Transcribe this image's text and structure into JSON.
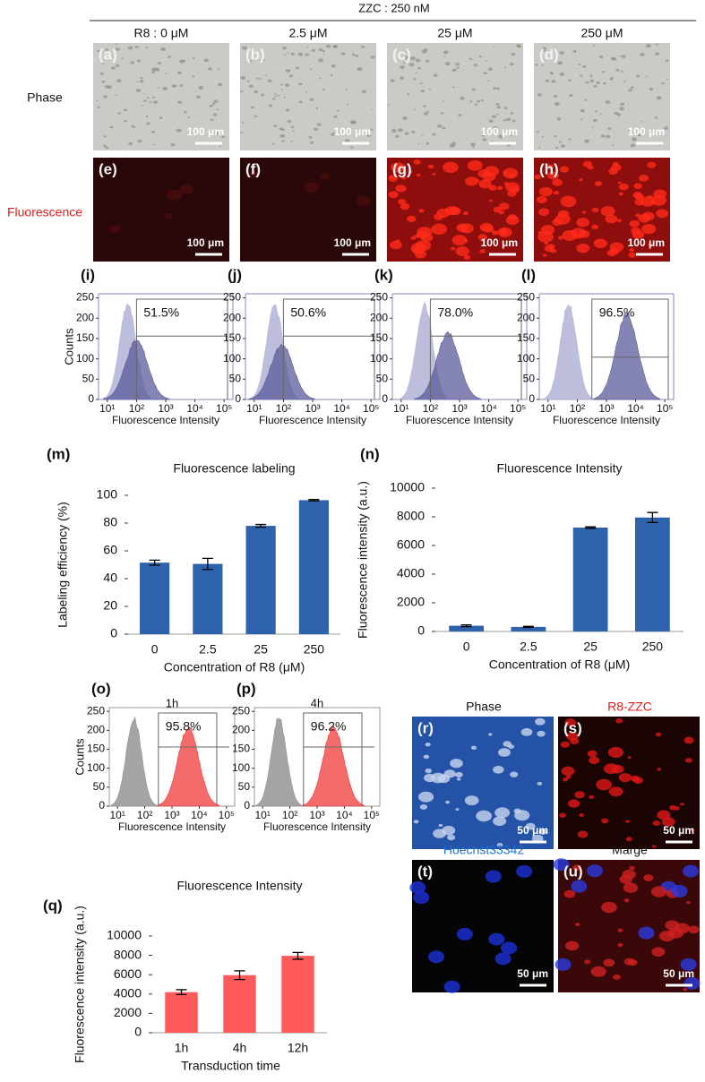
{
  "header": {
    "title": "ZZC : 250 nM",
    "columns": [
      "R8 : 0 μM",
      "2.5 μM",
      "25 μM",
      "250 μM"
    ]
  },
  "rows": {
    "phase": "Phase",
    "fluorescence": "Fluorescence"
  },
  "images": {
    "labels": [
      "(a)",
      "(b)",
      "(c)",
      "(d)",
      "(e)",
      "(f)",
      "(g)",
      "(h)"
    ],
    "scale_bar": "100 μm"
  },
  "flow_axes": {
    "ylabel": "Counts",
    "xlabel": "Fluorescence Intensity",
    "xlim": [
      5,
      200000
    ],
    "ylim": [
      0,
      260
    ],
    "yticks": [
      0,
      50,
      100,
      150,
      200,
      250
    ],
    "xticks": [
      {
        "value": 10,
        "label": "10¹"
      },
      {
        "value": 100,
        "label": "10²"
      },
      {
        "value": 1000,
        "label": "10³"
      },
      {
        "value": 10000,
        "label": "10⁴"
      },
      {
        "value": 100000,
        "label": "10⁵"
      }
    ]
  },
  "flow_plots": [
    {
      "label": "(i)",
      "gate": "51.5%"
    },
    {
      "label": "(j)",
      "gate": "50.6%"
    },
    {
      "label": "(k)",
      "gate": "78.0%"
    },
    {
      "label": "(l)",
      "gate": "96.5%"
    },
    {
      "label": "(o)",
      "title": "1h",
      "gate": "95.8%"
    },
    {
      "label": "(p)",
      "title": "4h",
      "gate": "96.2%"
    }
  ],
  "micro": {
    "labels": [
      "(r)",
      "(s)",
      "(t)",
      "(u)"
    ],
    "titles": [
      "Phase",
      "R8-ZZC",
      "Hoechst33342",
      "Marge"
    ],
    "scale_bar": "50 μm"
  },
  "chart_data": [
    {
      "type": "bar",
      "label": "(m)",
      "title": "Fluorescence labeling",
      "xlabel": "Concentration of R8 (μM)",
      "ylabel": "Labeling efficiency (%)",
      "categories": [
        "0",
        "2.5",
        "25",
        "250"
      ],
      "values": [
        51.5,
        50.6,
        78.0,
        96.5
      ],
      "errors": [
        1.8,
        4,
        1,
        0.5
      ],
      "color": "#2e62ad",
      "ylim": [
        0,
        100
      ],
      "yticks": [
        0,
        20,
        40,
        60,
        80,
        100
      ]
    },
    {
      "type": "bar",
      "label": "(n)",
      "title": "Fluorescence Intensity",
      "xlabel": "Concentration of R8 (μM)",
      "ylabel": "Fluorescence intensity (a.u.)",
      "categories": [
        "0",
        "2.5",
        "25",
        "250"
      ],
      "values": [
        400,
        320,
        7250,
        7950
      ],
      "errors": [
        60,
        40,
        50,
        350
      ],
      "color": "#2e62ad",
      "ylim": [
        0,
        10000
      ],
      "yticks": [
        0,
        2000,
        4000,
        6000,
        8000,
        10000
      ]
    },
    {
      "type": "bar",
      "label": "(q)",
      "title": "Fluorescence Intensity",
      "xlabel": "Transduction time",
      "ylabel": "Fluorescence intensity (a.u.)",
      "categories": [
        "1h",
        "4h",
        "12h"
      ],
      "values": [
        4200,
        5950,
        7950
      ],
      "errors": [
        250,
        450,
        350
      ],
      "color": "#ff5a5a",
      "ylim": [
        0,
        10000
      ],
      "yticks": [
        0,
        2000,
        4000,
        6000,
        8000,
        10000
      ]
    }
  ]
}
